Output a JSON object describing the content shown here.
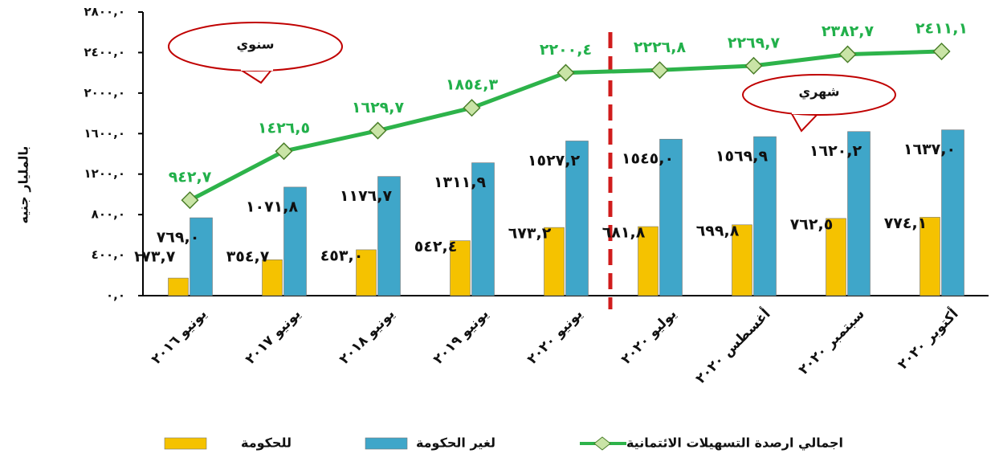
{
  "chart_data": {
    "type": "bar-line",
    "y_label": "بالمليار جنيه",
    "annotations": [
      "سنوي",
      "شهري"
    ],
    "categories": [
      "يونيو ٢٠١٦",
      "يونيو ٢٠١٧",
      "يونيو ٢٠١٨",
      "يونيو ٢٠١٩",
      "يونيو ٢٠٢٠",
      "يوليو ٢٠٢٠",
      "أغسطس ٢٠٢٠",
      "سبتمبر ٢٠٢٠",
      "أكتوبر ٢٠٢٠"
    ],
    "series": [
      {
        "name": "للحكومة",
        "type": "bar",
        "color": "#f5c200",
        "values": [
          173.7,
          354.7,
          453.0,
          542.4,
          673.2,
          681.8,
          699.8,
          762.5,
          774.1
        ],
        "value_labels": [
          "١٧٣,٧",
          "٣٥٤,٧",
          "٤٥٣,٠",
          "٥٤٢,٤",
          "٦٧٣,٢",
          "٦٨١,٨",
          "٦٩٩,٨",
          "٧٦٢,٥",
          "٧٧٤,١"
        ]
      },
      {
        "name": "لغير الحكومة",
        "type": "bar",
        "color": "#3fa6c9",
        "values": [
          769.0,
          1071.8,
          1176.7,
          1311.9,
          1527.2,
          1545.0,
          1569.9,
          1620.2,
          1637.0
        ],
        "value_labels": [
          "٧٦٩,٠",
          "١٠٧١,٨",
          "١١٧٦,٧",
          "١٣١١,٩",
          "١٥٢٧,٢",
          "١٥٤٥,٠",
          "١٥٦٩,٩",
          "١٦٢٠,٢",
          "١٦٣٧,٠"
        ]
      },
      {
        "name": "اجمالي ارصدة التسهيلات الائتمانية",
        "type": "line",
        "color": "#2db34a",
        "values": [
          942.7,
          1426.5,
          1629.7,
          1854.3,
          2200.4,
          2226.8,
          2269.7,
          2382.7,
          2411.1
        ],
        "value_labels": [
          "٩٤٢,٧",
          "١٤٢٦,٥",
          "١٦٢٩,٧",
          "١٨٥٤,٣",
          "٢٢٠٠,٤",
          "٢٢٢٦,٨",
          "٢٢٦٩,٧",
          "٢٣٨٢,٧",
          "٢٤١١,١"
        ]
      }
    ],
    "ylim": [
      0,
      2800
    ],
    "yticks": [
      {
        "value": 0,
        "label": "٠,٠"
      },
      {
        "value": 400,
        "label": "٤٠٠,٠"
      },
      {
        "value": 800,
        "label": "٨٠٠,٠"
      },
      {
        "value": 1200,
        "label": "١٢٠٠,٠"
      },
      {
        "value": 1600,
        "label": "١٦٠٠,٠"
      },
      {
        "value": 2000,
        "label": "٢٠٠٠,٠"
      },
      {
        "value": 2400,
        "label": "٢٤٠٠,٠"
      },
      {
        "value": 2800,
        "label": "٢٨٠٠,٠"
      }
    ]
  }
}
